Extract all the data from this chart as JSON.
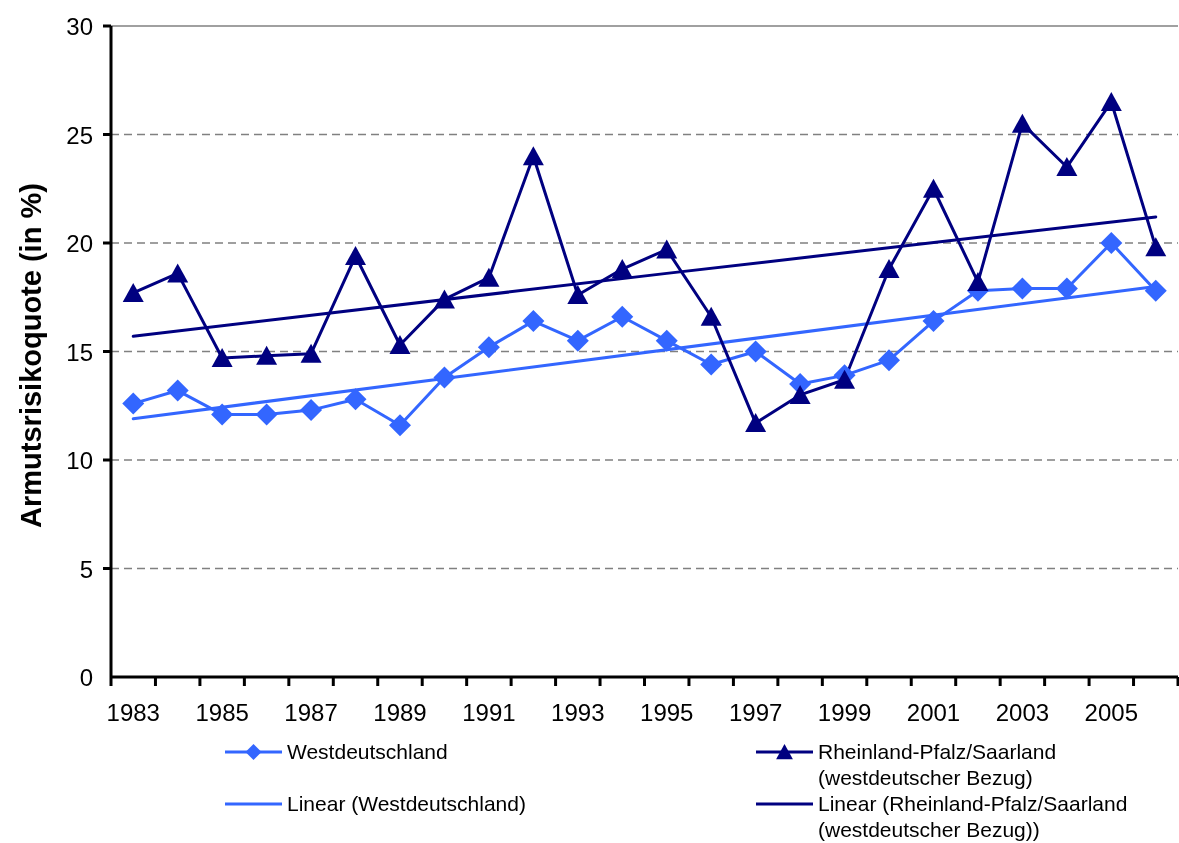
{
  "chart_data": {
    "type": "line",
    "ylabel": "Armutsrisikoquote (in %)",
    "x": [
      1983,
      1984,
      1985,
      1986,
      1987,
      1988,
      1989,
      1990,
      1991,
      1992,
      1993,
      1994,
      1995,
      1996,
      1997,
      1998,
      1999,
      2000,
      2001,
      2002,
      2003,
      2004,
      2005,
      2006
    ],
    "xlim": [
      1982.5,
      2006.5
    ],
    "xticks": [
      {
        "value": 1982.5,
        "label": null
      },
      1983,
      {
        "value": 1983.5,
        "label": null
      },
      {
        "value": 1984.5,
        "label": null
      },
      1985,
      {
        "value": 1985.5,
        "label": null
      },
      {
        "value": 1986.5,
        "label": null
      },
      1987,
      {
        "value": 1987.5,
        "label": null
      },
      {
        "value": 1988.5,
        "label": null
      },
      1989,
      {
        "value": 1989.5,
        "label": null
      },
      {
        "value": 1990.5,
        "label": null
      },
      1991,
      {
        "value": 1991.5,
        "label": null
      },
      {
        "value": 1992.5,
        "label": null
      },
      1993,
      {
        "value": 1993.5,
        "label": null
      },
      {
        "value": 1994.5,
        "label": null
      },
      1995,
      {
        "value": 1995.5,
        "label": null
      },
      {
        "value": 1996.5,
        "label": null
      },
      1997,
      {
        "value": 1997.5,
        "label": null
      },
      {
        "value": 1998.5,
        "label": null
      },
      1999,
      {
        "value": 1999.5,
        "label": null
      },
      {
        "value": 2000.5,
        "label": null
      },
      2001,
      {
        "value": 2001.5,
        "label": null
      },
      {
        "value": 2002.5,
        "label": null
      },
      2003,
      {
        "value": 2003.5,
        "label": null
      },
      {
        "value": 2004.5,
        "label": null
      },
      2005,
      {
        "value": 2005.5,
        "label": null
      },
      {
        "value": 2006.5,
        "label": null
      }
    ],
    "ylim": [
      0,
      30
    ],
    "yticks": [
      0,
      5,
      10,
      15,
      20,
      25,
      30
    ],
    "grid": "y",
    "legend": "bottom",
    "series": [
      {
        "name": "Westdeutschland",
        "color": "#3366ff",
        "marker": "diamond",
        "values": [
          12.6,
          13.2,
          12.1,
          12.1,
          12.3,
          12.8,
          11.6,
          13.8,
          15.2,
          16.4,
          15.5,
          16.6,
          15.5,
          14.4,
          15.0,
          13.5,
          13.9,
          14.6,
          16.4,
          17.8,
          17.9,
          17.9,
          20.0,
          17.8
        ]
      },
      {
        "name": "Rheinland-Pfalz/Saarland (westdeutscher Bezug)",
        "color": "#000080",
        "marker": "triangle",
        "values": [
          17.7,
          18.6,
          14.7,
          14.8,
          14.9,
          19.4,
          15.3,
          17.4,
          18.4,
          24.0,
          17.6,
          18.8,
          19.7,
          16.6,
          11.7,
          13.0,
          13.7,
          18.8,
          22.5,
          18.2,
          25.5,
          23.5,
          26.5,
          19.8
        ]
      },
      {
        "name": "Linear (Westdeutschland)",
        "color": "#3366ff",
        "type": "line",
        "x": [
          1983,
          2006
        ],
        "values": [
          11.9,
          18.0
        ]
      },
      {
        "name": "Linear (Rheinland-Pfalz/Saarland (westdeutscher Bezug))",
        "color": "#000080",
        "type": "line",
        "x": [
          1983,
          1995,
          2006
        ],
        "values": [
          15.7,
          18.6,
          21.2
        ]
      }
    ]
  }
}
